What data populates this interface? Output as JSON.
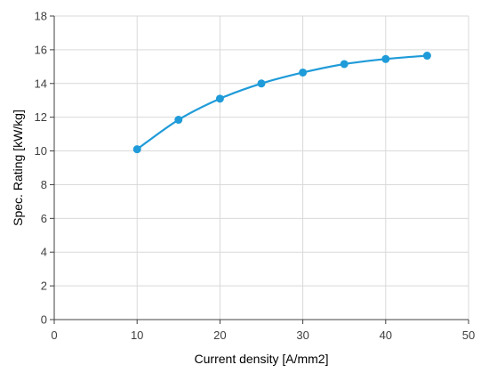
{
  "chart_data": {
    "type": "line",
    "xlabel": "Current density [A/mm2]",
    "ylabel": "Spec. Rating [kW/kg]",
    "xlim": [
      0,
      50
    ],
    "ylim": [
      0,
      18
    ],
    "xticks": [
      0,
      10,
      20,
      30,
      40,
      50
    ],
    "yticks": [
      0,
      2,
      4,
      6,
      8,
      10,
      12,
      14,
      16,
      18
    ],
    "grid": true,
    "smooth": true,
    "series": [
      {
        "x": [
          10,
          15,
          20,
          25,
          30,
          35,
          40,
          45
        ],
        "y": [
          10.1,
          11.85,
          13.1,
          14.0,
          14.65,
          15.15,
          15.45,
          15.65
        ],
        "color": "#1f9bd9"
      }
    ]
  }
}
